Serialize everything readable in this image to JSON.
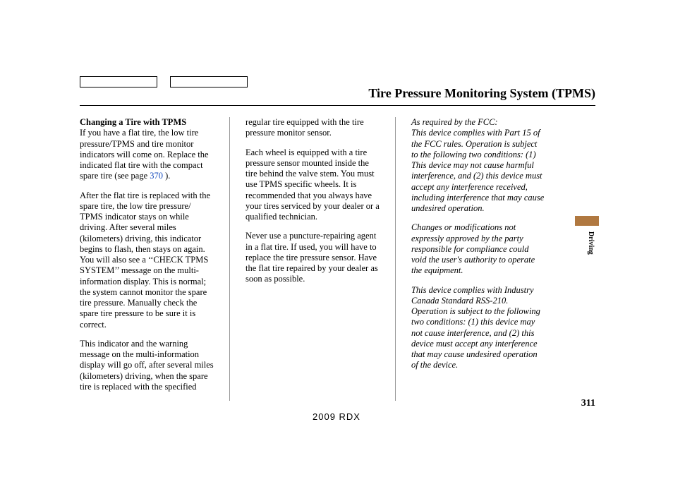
{
  "header": {
    "title": "Tire Pressure Monitoring System (TPMS)"
  },
  "col1": {
    "subhead": "Changing a Tire with TPMS",
    "p1a": "If you have a flat tire, the low tire pressure/TPMS and tire monitor indicators will come on. Replace the indicated flat tire with the compact spare tire (see page ",
    "p1link": "370",
    "p1b": " ).",
    "p2": "After the flat tire is replaced with the spare tire, the low tire pressure/ TPMS indicator stays on while driving. After several miles (kilometers) driving, this indicator begins to flash, then stays on again. You will also see a ‘‘CHECK TPMS SYSTEM’’ message on the multi-information display. This is normal; the system cannot monitor the spare tire pressure. Manually check the spare tire pressure to be sure it is correct.",
    "p3": "This indicator and the warning message on the multi-information display will go off, after several miles (kilometers) driving, when the spare tire is replaced with the specified"
  },
  "col2": {
    "p1": "regular tire equipped with the tire pressure monitor sensor.",
    "p2": "Each wheel is equipped with a tire pressure sensor mounted inside the tire behind the valve stem. You must use TPMS specific wheels. It is recommended that you always have your tires serviced by your dealer or a qualified technician.",
    "p3": "Never use a puncture-repairing agent in a flat tire. If used, you will have to replace the tire pressure sensor. Have the flat tire repaired by your dealer as soon as possible."
  },
  "col3": {
    "p1": "As required by the FCC:\nThis device complies with Part 15 of the FCC rules. Operation is subject to the following two conditions: (1) This device may not cause harmful interference, and (2) this device must accept any interference received, including interference that may cause undesired operation.",
    "p2": "Changes or modifications not expressly approved by the party responsible for compliance could void the user's authority to operate the equipment.",
    "p3": "This device complies with Industry Canada Standard RSS-210.\nOperation is subject to the following two conditions: (1) this device may not cause interference, and (2) this device must accept any interference that may cause undesired operation of the device."
  },
  "sidebar": {
    "label": "Driving"
  },
  "footer": {
    "pagenum": "311",
    "model": "2009  RDX"
  },
  "styles": {
    "side_tab_color": "#b07840",
    "link_color": "#1a4fbf",
    "body_font_size": 12.5,
    "title_font_size": 18
  }
}
